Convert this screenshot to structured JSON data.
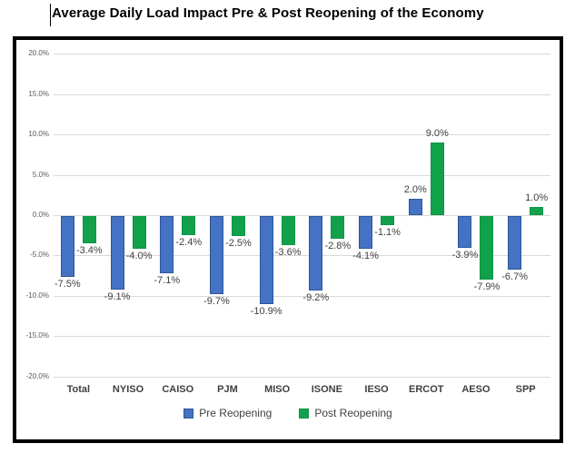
{
  "chart_data": {
    "type": "bar",
    "title": "Average Daily Load Impact Pre & Post Reopening of the Economy",
    "categories": [
      "Total",
      "NYISO",
      "CAISO",
      "PJM",
      "MISO",
      "ISONE",
      "IESO",
      "ERCOT",
      "AESO",
      "SPP"
    ],
    "series": [
      {
        "name": "Pre Reopening",
        "color": "#4472c4",
        "border_color": "#2f5597",
        "values": [
          -7.5,
          -9.1,
          -7.1,
          -9.7,
          -10.9,
          -9.2,
          -4.1,
          2.0,
          -3.9,
          -6.7
        ],
        "labels": [
          "-7.5%",
          "-9.1%",
          "-7.1%",
          "-9.7%",
          "-10.9%",
          "-9.2%",
          "-4.1%",
          "2.0%",
          "-3.9%",
          "-6.7%"
        ]
      },
      {
        "name": "Post Reopening",
        "color": "#12a14b",
        "border_color": "#0e9448",
        "values": [
          -3.4,
          -4.0,
          -2.4,
          -2.5,
          -3.6,
          -2.8,
          -1.1,
          9.0,
          -7.9,
          1.0
        ],
        "labels": [
          "-3.4%",
          "-4.0%",
          "-2.4%",
          "-2.5%",
          "-3.6%",
          "-2.8%",
          "-1.1%",
          "9.0%",
          "-7.9%",
          "1.0%"
        ]
      }
    ],
    "xlabel": "",
    "ylabel": "",
    "ylim": [
      -20,
      20
    ],
    "ytick_step": 5,
    "yticks": [
      "20.0%",
      "15.0%",
      "10.0%",
      "5.0%",
      "0.0%",
      "-5.0%",
      "-10.0%",
      "-15.0%",
      "-20.0%"
    ],
    "ytick_values": [
      20,
      15,
      10,
      5,
      0,
      -5,
      -10,
      -15,
      -20
    ],
    "grid": true,
    "gridline_color": "#d9d9d9",
    "legend_position": "bottom"
  }
}
